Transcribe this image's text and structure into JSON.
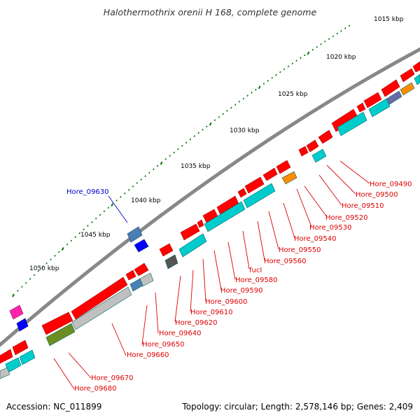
{
  "title": "Halothermothrix orenii H 168, complete genome",
  "footer": {
    "accession": "Accession: NC_011899",
    "summary": "Topology: circular; Length: 2,578,146 bp; Genes: 2,409"
  },
  "colors": {
    "backbone": "#777777",
    "gene_red": "#ff0000",
    "gene_cyan": "#00cccc",
    "label_red": "#dd0000",
    "label_blue": "#0000cc",
    "tick_green": "#007700"
  },
  "scale_labels": [
    "1015 kbp",
    "1020 kbp",
    "1025 kbp",
    "1030 kbp",
    "1035 kbp",
    "1040 kbp",
    "1045 kbp",
    "1050 kbp"
  ],
  "gene_labels_red": [
    "Hore_09490",
    "Hore_09500",
    "Hore_09510",
    "Hore_09520",
    "Hore_09530",
    "Hore_09540",
    "Hore_09550",
    "Hore_09560",
    "fucI",
    "Hore_09580",
    "Hore_09590",
    "Hore_09600",
    "Hore_09610",
    "Hore_09620",
    "Hore_09640",
    "Hore_09650",
    "Hore_09660",
    "Hore_09670",
    "Hore_09680"
  ],
  "gene_labels_blue": [
    "Hore_09630"
  ]
}
